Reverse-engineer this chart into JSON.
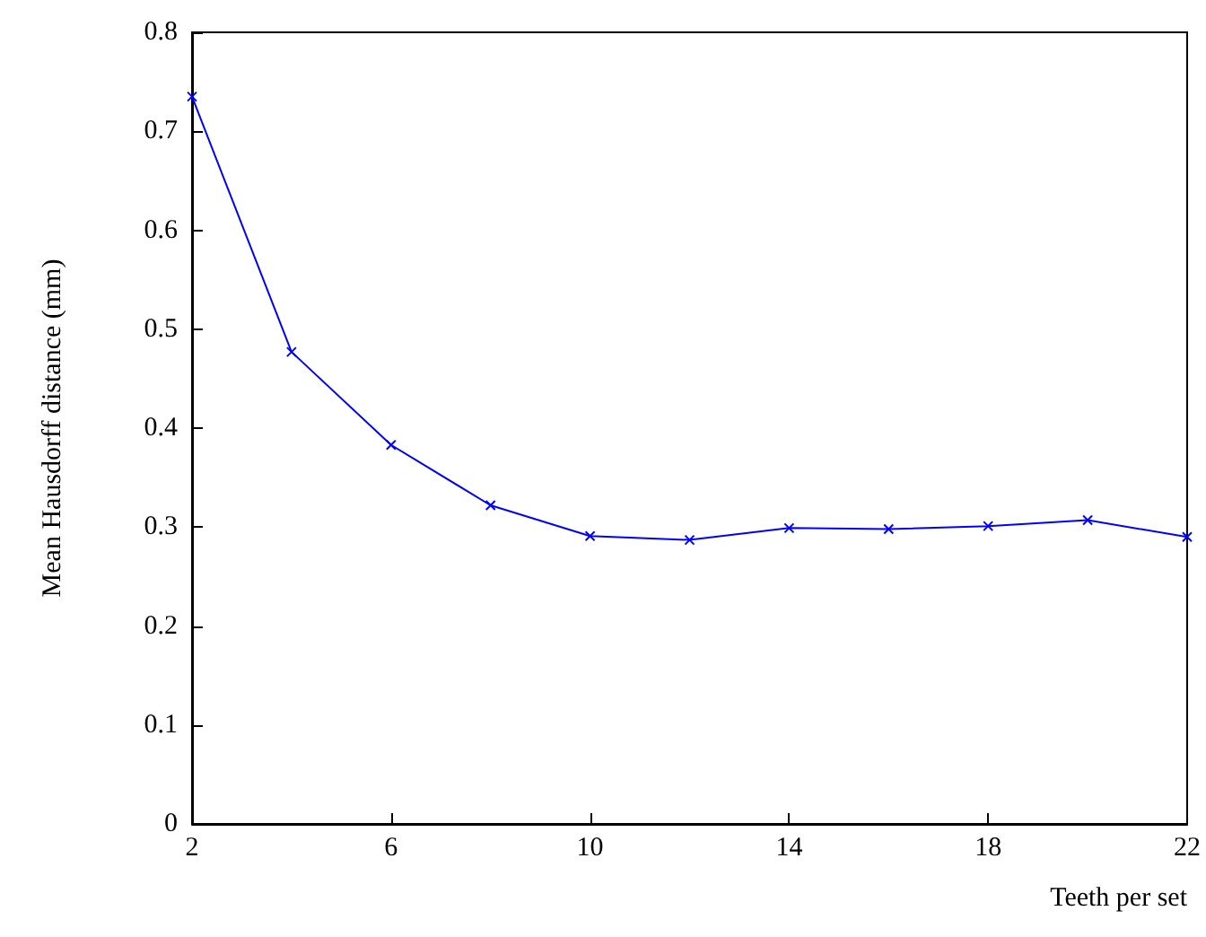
{
  "chart_data": {
    "type": "line",
    "xlabel": "Teeth per set",
    "ylabel": "Mean Hausdorff distance (mm)",
    "x": [
      2,
      4,
      6,
      8,
      10,
      12,
      14,
      16,
      18,
      20,
      22
    ],
    "series": [
      {
        "color": "#0000ff",
        "values": [
          0.735,
          0.477,
          0.383,
          0.322,
          0.291,
          0.287,
          0.299,
          0.298,
          0.301,
          0.307,
          0.29
        ]
      }
    ],
    "xlim": [
      2,
      22
    ],
    "xticks": [
      2,
      6,
      10,
      14,
      18,
      22
    ],
    "ylim": [
      0,
      0.8
    ],
    "yticks": [
      0,
      0.1,
      0.2,
      0.3,
      0.4,
      0.5,
      0.6,
      0.7,
      0.8
    ],
    "grid": false,
    "marker": "cross",
    "line_style": "solid"
  }
}
